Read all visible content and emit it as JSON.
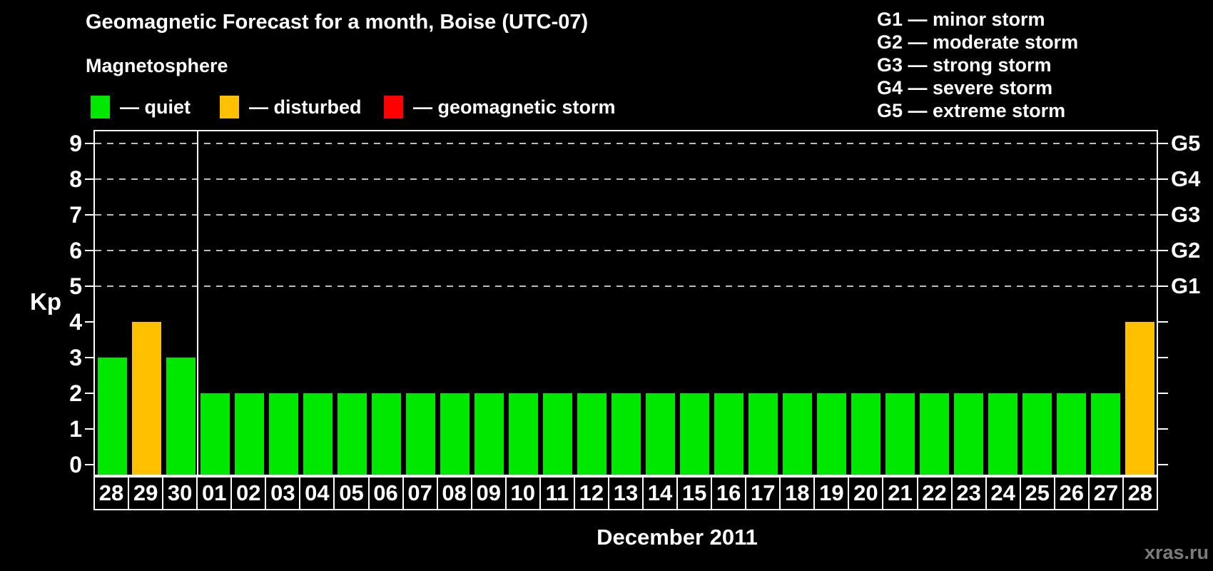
{
  "title": "Geomagnetic Forecast for a month, Boise (UTC-07)",
  "subtitle": "Magnetosphere",
  "kp_legend": {
    "items": [
      {
        "id": "quiet",
        "label": "— quiet",
        "color": "#00E800"
      },
      {
        "id": "disturbed",
        "label": "— disturbed",
        "color": "#FFC000"
      },
      {
        "id": "storm",
        "label": "— geomagnetic storm",
        "color": "#FF0000"
      }
    ]
  },
  "storm_scale_legend": {
    "lines": [
      "G1 — minor storm",
      "G2 — moderate storm",
      "G3 — strong storm",
      "G4 — severe storm",
      "G5 — extreme storm"
    ]
  },
  "watermark": "xras.ru",
  "chart_data": {
    "type": "bar",
    "title": "Geomagnetic Forecast for a month, Boise (UTC-07)",
    "xlabel": "December 2011",
    "ylabel": "Kp",
    "ylim": [
      0,
      9.4
    ],
    "y_ticks": [
      0,
      1,
      2,
      3,
      4,
      5,
      6,
      7,
      8,
      9
    ],
    "gridline_levels": [
      5,
      6,
      7,
      8,
      9
    ],
    "grid_style": "dashed horizontal lines at storm levels G1–G5",
    "right_axis_labels": [
      {
        "level": 5,
        "label": "G1"
      },
      {
        "level": 6,
        "label": "G2"
      },
      {
        "level": 7,
        "label": "G3"
      },
      {
        "level": 8,
        "label": "G4"
      },
      {
        "level": 9,
        "label": "G5"
      }
    ],
    "categories": [
      "28",
      "29",
      "30",
      "01",
      "02",
      "03",
      "04",
      "05",
      "06",
      "07",
      "08",
      "09",
      "10",
      "11",
      "12",
      "13",
      "14",
      "15",
      "16",
      "17",
      "18",
      "19",
      "20",
      "21",
      "22",
      "23",
      "24",
      "25",
      "26",
      "27",
      "28"
    ],
    "values": [
      3,
      4,
      3,
      2,
      2,
      2,
      2,
      2,
      2,
      2,
      2,
      2,
      2,
      2,
      2,
      2,
      2,
      2,
      2,
      2,
      2,
      2,
      2,
      2,
      2,
      2,
      2,
      2,
      2,
      2,
      4
    ],
    "statuses": [
      "quiet",
      "disturbed",
      "quiet",
      "quiet",
      "quiet",
      "quiet",
      "quiet",
      "quiet",
      "quiet",
      "quiet",
      "quiet",
      "quiet",
      "quiet",
      "quiet",
      "quiet",
      "quiet",
      "quiet",
      "quiet",
      "quiet",
      "quiet",
      "quiet",
      "quiet",
      "quiet",
      "quiet",
      "quiet",
      "quiet",
      "quiet",
      "quiet",
      "quiet",
      "quiet",
      "disturbed"
    ],
    "status_colors": {
      "quiet": "#00E800",
      "disturbed": "#FFC000",
      "storm": "#FF0000"
    },
    "month_separator_after_index": 2,
    "month_label_span": {
      "start_index": 3,
      "end_index": 30
    },
    "legend_position": "top"
  }
}
